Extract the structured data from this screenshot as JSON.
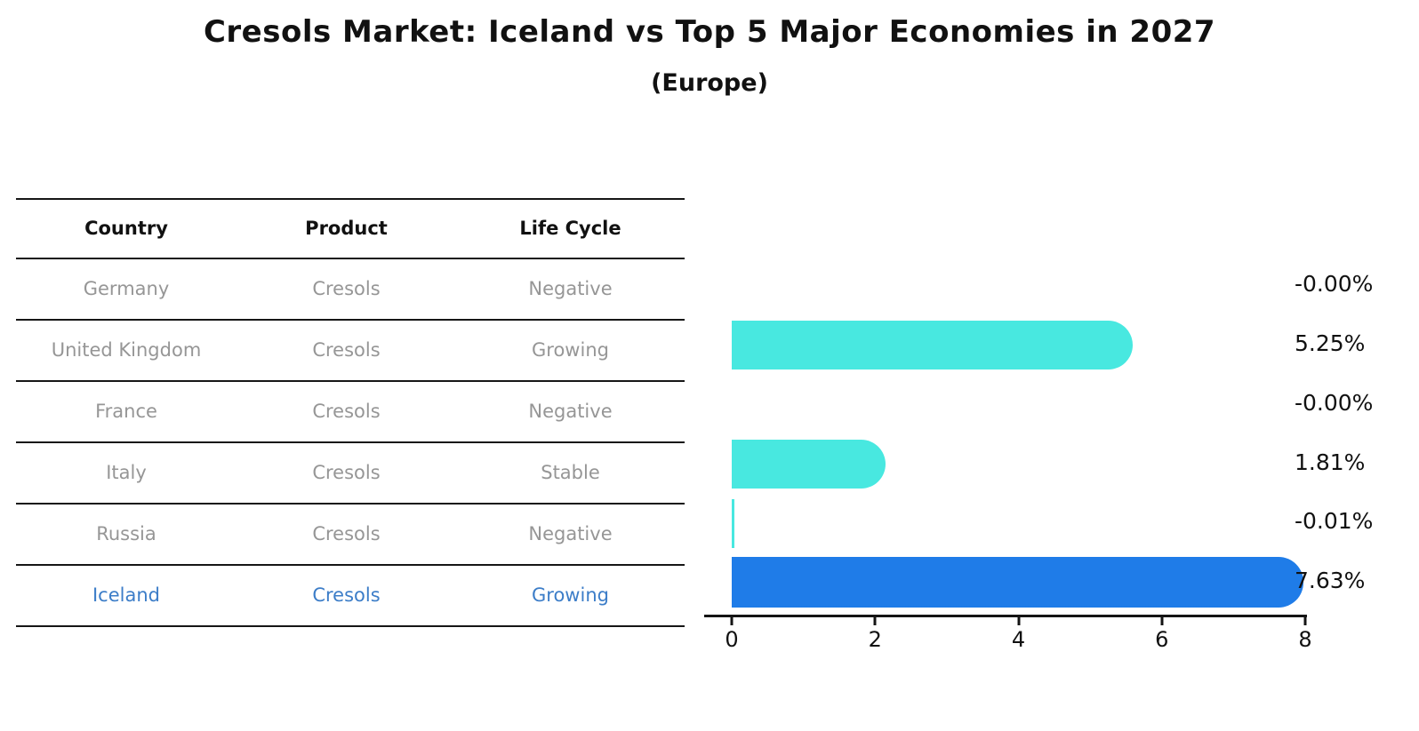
{
  "chart_data": {
    "type": "bar",
    "orientation": "horizontal",
    "title": "Cresols Market: Iceland vs Top 5 Major Economies in 2027",
    "subtitle": "(Europe)",
    "categories": [
      "Germany",
      "United Kingdom",
      "France",
      "Italy",
      "Russia",
      "Iceland"
    ],
    "values": [
      -0.0,
      5.25,
      -0.0,
      1.81,
      -0.01,
      7.63
    ],
    "value_labels": [
      "-0.00%",
      "5.25%",
      "-0.00%",
      "1.81%",
      "-0.01%",
      "7.63%"
    ],
    "xlim": [
      0,
      8
    ],
    "xticks": [
      0,
      2,
      4,
      6,
      8
    ],
    "xtick_labels": [
      "0",
      "2",
      "4",
      "6",
      "8"
    ],
    "grid": false,
    "legend": null,
    "highlight_index": 5,
    "highlight_style": "dotted-border"
  },
  "table": {
    "headers": [
      "Country",
      "Product",
      "Life Cycle"
    ],
    "rows": [
      {
        "country": "Germany",
        "product": "Cresols",
        "life_cycle": "Negative",
        "highlight": false
      },
      {
        "country": "United Kingdom",
        "product": "Cresols",
        "life_cycle": "Growing",
        "highlight": false
      },
      {
        "country": "France",
        "product": "Cresols",
        "life_cycle": "Negative",
        "highlight": false
      },
      {
        "country": "Italy",
        "product": "Cresols",
        "life_cycle": "Stable",
        "highlight": false
      },
      {
        "country": "Russia",
        "product": "Cresols",
        "life_cycle": "Negative",
        "highlight": false
      },
      {
        "country": "Iceland",
        "product": "Cresols",
        "life_cycle": "Growing",
        "highlight": true
      }
    ]
  },
  "colors": {
    "bar": "#48e8e0",
    "highlight_bar": "#1f7ce8",
    "highlight_text": "#3c7dc8",
    "text_dark": "#111111",
    "text_gray": "#969696",
    "axis": "#141414",
    "background": "#ffffff"
  }
}
